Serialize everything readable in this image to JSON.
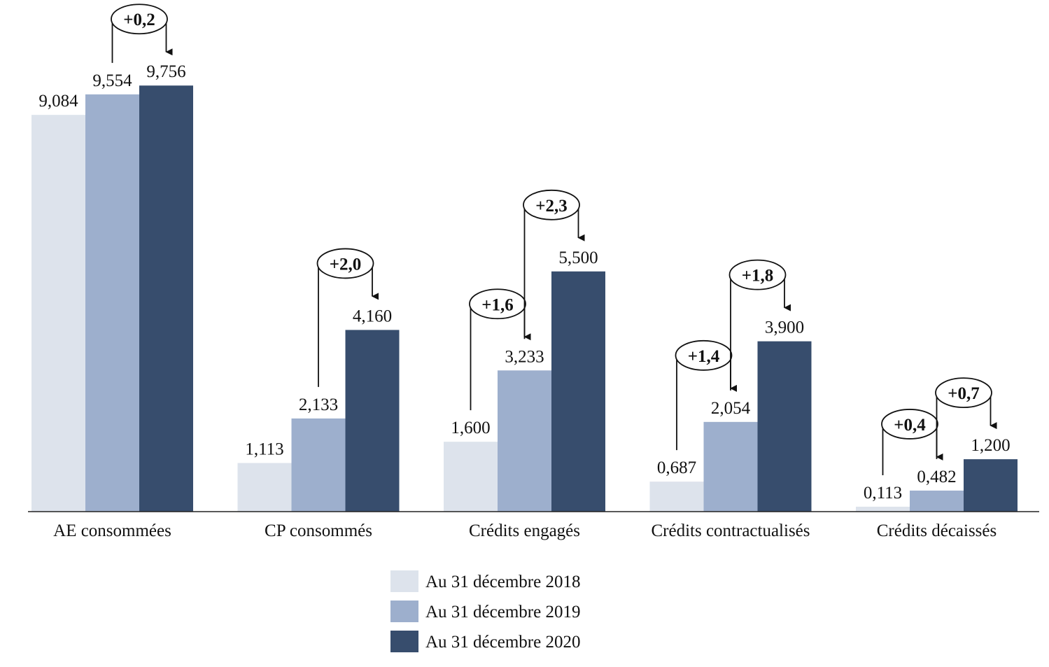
{
  "chart_data": {
    "type": "bar",
    "categories": [
      "AE consommées",
      "CP consommés",
      "Crédits engagés",
      "Crédits contractualisés",
      "Crédits décaissés"
    ],
    "series": [
      {
        "name": "Au 31 décembre 2018",
        "color": "#dde3ec",
        "values": [
          9.084,
          1.113,
          1.6,
          0.687,
          0.113
        ],
        "value_labels": [
          "9,084",
          "1,113",
          "1,600",
          "0,687",
          "0,113"
        ]
      },
      {
        "name": "Au 31 décembre 2019",
        "color": "#9dafcd",
        "values": [
          9.554,
          2.133,
          3.233,
          2.054,
          0.482
        ],
        "value_labels": [
          "9,554",
          "2,133",
          "3,233",
          "2,054",
          "0,482"
        ]
      },
      {
        "name": "Au 31 décembre 2020",
        "color": "#374d6d",
        "values": [
          9.756,
          4.16,
          5.5,
          3.9,
          1.2
        ],
        "value_labels": [
          "9,756",
          "4,160",
          "5,500",
          "3,900",
          "1,200"
        ]
      }
    ],
    "annotations": [
      {
        "text": "+0,2",
        "category": 0,
        "from": 1,
        "to": 2
      },
      {
        "text": "+2,0",
        "category": 1,
        "from": 1,
        "to": 2
      },
      {
        "text": "+1,6",
        "category": 2,
        "from": 0,
        "to": 1
      },
      {
        "text": "+2,3",
        "category": 2,
        "from": 1,
        "to": 2
      },
      {
        "text": "+1,4",
        "category": 3,
        "from": 0,
        "to": 1
      },
      {
        "text": "+1,8",
        "category": 3,
        "from": 1,
        "to": 2
      },
      {
        "text": "+0,4",
        "category": 4,
        "from": 0,
        "to": 1
      },
      {
        "text": "+0,7",
        "category": 4,
        "from": 1,
        "to": 2
      }
    ]
  }
}
